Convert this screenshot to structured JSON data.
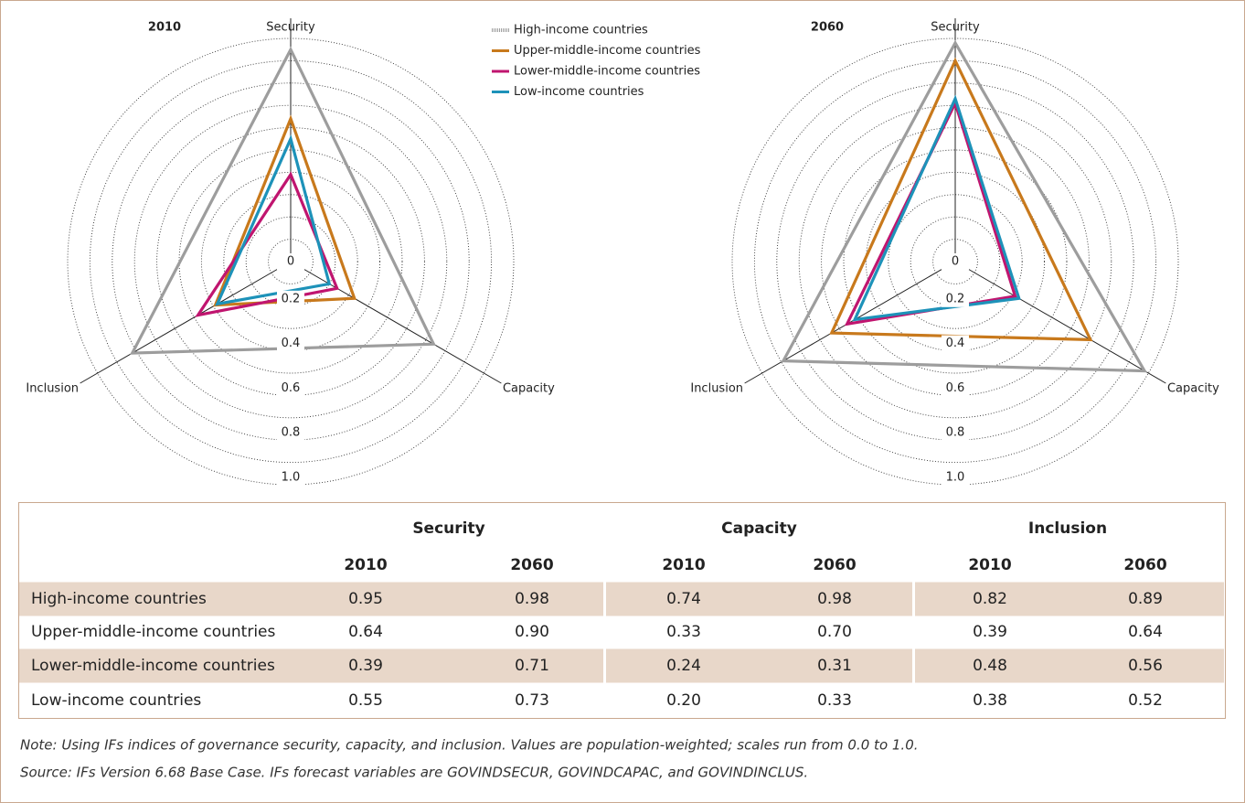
{
  "chart_data": [
    {
      "type": "radar",
      "title": "2010",
      "categories": [
        "Security",
        "Capacity",
        "Inclusion"
      ],
      "series": [
        {
          "name": "High-income countries",
          "color": "#9d9d9d",
          "values": [
            0.95,
            0.74,
            0.82
          ]
        },
        {
          "name": "Upper-middle-income countries",
          "color": "#c8791c",
          "values": [
            0.64,
            0.33,
            0.39
          ]
        },
        {
          "name": "Lower-middle-income countries",
          "color": "#c0156f",
          "values": [
            0.39,
            0.24,
            0.48
          ]
        },
        {
          "name": "Low-income countries",
          "color": "#1d92b9",
          "values": [
            0.55,
            0.2,
            0.38
          ]
        }
      ],
      "ylim": [
        0,
        1
      ],
      "yticks": [
        0,
        0.2,
        0.4,
        0.6,
        0.8,
        {
          "value": 1,
          "label": "1.0"
        }
      ],
      "grid_rings": [
        0.1,
        0.2,
        0.3,
        0.4,
        0.5,
        0.6,
        0.7,
        0.8,
        0.9,
        1
      ],
      "grid": true
    },
    {
      "type": "radar",
      "title": "2060",
      "categories": [
        "Security",
        "Capacity",
        "Inclusion"
      ],
      "series": [
        {
          "color": "#9d9d9d",
          "values": [
            0.98,
            0.98,
            0.89
          ]
        },
        {
          "color": "#c8791c",
          "values": [
            0.9,
            0.7,
            0.64
          ]
        },
        {
          "color": "#c0156f",
          "values": [
            0.71,
            0.31,
            0.56
          ]
        },
        {
          "color": "#1d92b9",
          "values": [
            0.73,
            0.33,
            0.52
          ]
        }
      ],
      "ylim": [
        0,
        1
      ],
      "yticks": [
        0,
        0.2,
        0.4,
        0.6,
        0.8,
        {
          "value": 1,
          "label": "1.0"
        }
      ],
      "grid_rings": [
        0.1,
        0.2,
        0.3,
        0.4,
        0.5,
        0.6,
        0.7,
        0.8,
        0.9,
        1
      ],
      "grid": true
    }
  ],
  "table": {
    "groups": [
      "Security",
      "Capacity",
      "Inclusion"
    ],
    "years": [
      "2010",
      "2060",
      "2010",
      "2060",
      "2010",
      "2060"
    ],
    "rows": [
      [
        "High-income countries",
        "0.95",
        "0.98",
        "0.74",
        "0.98",
        "0.82",
        "0.89"
      ],
      [
        "Upper-middle-income countries",
        "0.64",
        "0.90",
        "0.33",
        "0.70",
        "0.39",
        "0.64"
      ],
      [
        "Lower-middle-income countries",
        "0.39",
        "0.71",
        "0.24",
        "0.31",
        "0.48",
        "0.56"
      ],
      [
        "Low-income countries",
        "0.55",
        "0.73",
        "0.20",
        "0.33",
        "0.38",
        "0.52"
      ]
    ]
  },
  "notes": [
    "Note: Using IFs indices of governance security, capacity, and inclusion. Values are population-weighted; scales run from 0.0 to 1.0.",
    "Source: IFs Version 6.68 Base Case. IFs forecast variables are GOVINDSECUR, GOVINDCAPAC, and GOVINDINCLUS."
  ]
}
